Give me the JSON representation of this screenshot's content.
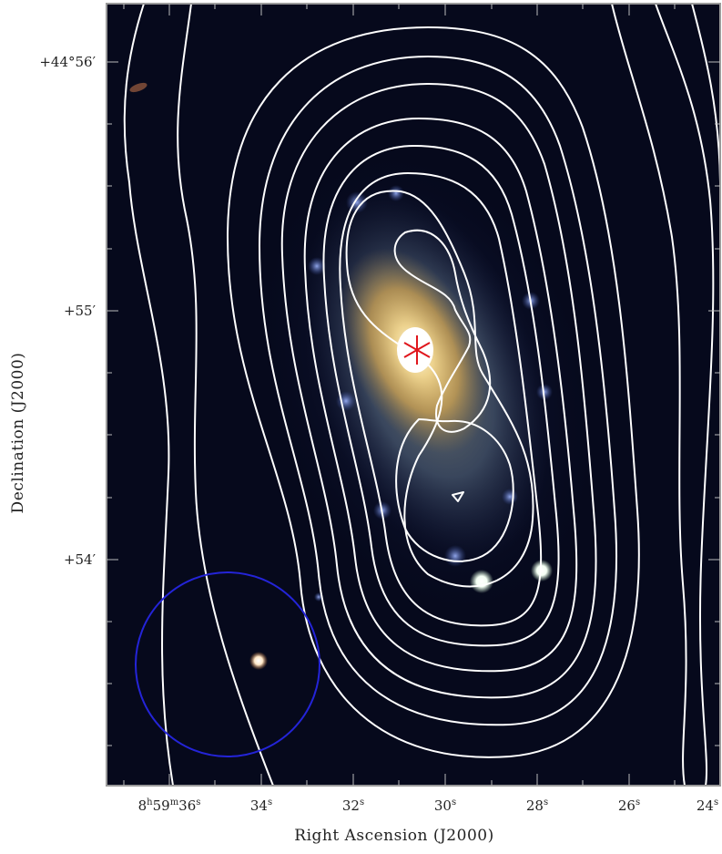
{
  "figure": {
    "xlabel": "Right Ascension (J2000)",
    "ylabel": "Declination (J2000)",
    "y_ticks": [
      {
        "deg": "+44°56′",
        "main": "+44°56",
        "prime": "′"
      },
      {
        "deg": "+55′",
        "main": "+55",
        "prime": "′"
      },
      {
        "deg": "+54′",
        "main": "+54",
        "prime": "′"
      }
    ],
    "x_ticks": [
      {
        "h": "8",
        "hsup": "h",
        "m": "59",
        "msup": "m",
        "s": "36",
        "ssup": "s"
      },
      {
        "s": "34",
        "ssup": "s"
      },
      {
        "s": "32",
        "ssup": "s"
      },
      {
        "s": "30",
        "ssup": "s"
      },
      {
        "s": "28",
        "ssup": "s"
      },
      {
        "s": "26",
        "ssup": "s"
      },
      {
        "s": "24",
        "ssup": "s"
      }
    ]
  },
  "colors": {
    "sky": "#06091c",
    "contours": "#ffffff",
    "marker": "#e0161c",
    "circle": "#2424d8",
    "frame": "#9a9a9a"
  },
  "markers": {
    "nucleus": "red asterisk",
    "beam": "blue circle"
  }
}
